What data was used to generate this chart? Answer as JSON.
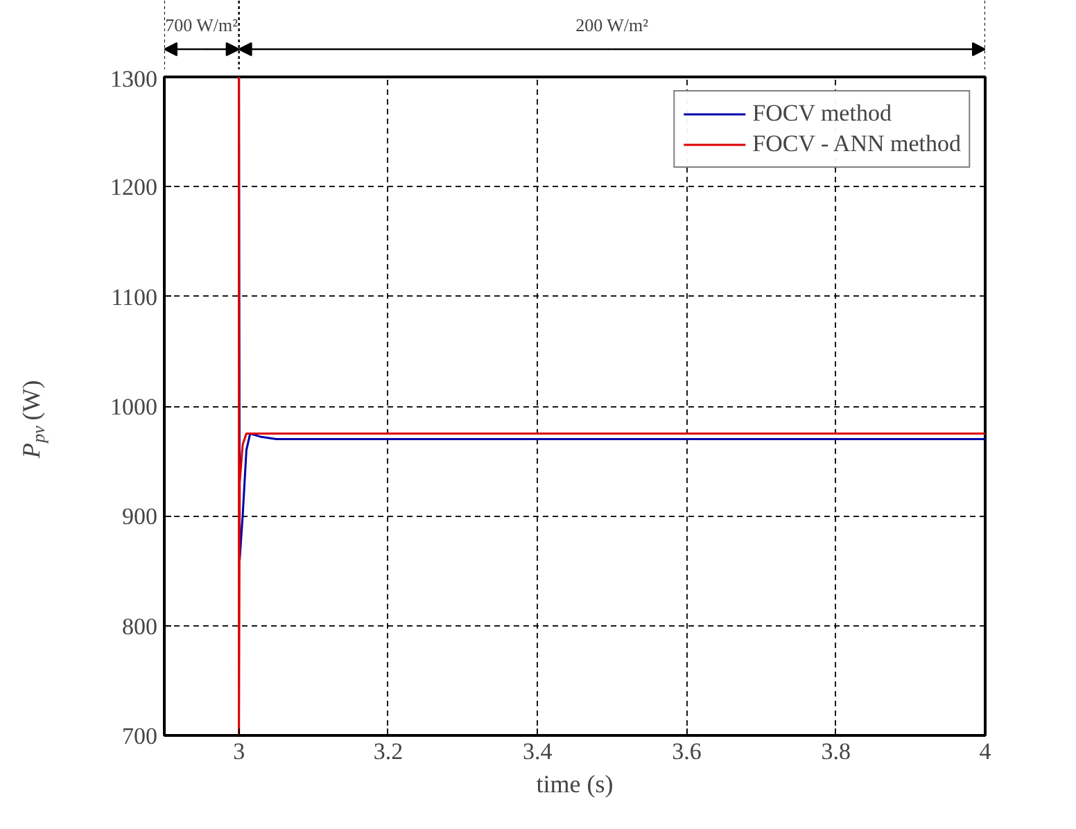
{
  "chart_data": {
    "type": "line",
    "xlabel": "time (s)",
    "ylabel": "P$_{pv}$ (W)",
    "xlim": [
      2.9,
      4
    ],
    "ylim": [
      700,
      1300
    ],
    "xticks": [
      3,
      3.2,
      3.4,
      3.6,
      3.8,
      4
    ],
    "yticks": [
      700,
      800,
      900,
      1000,
      1100,
      1200,
      1300
    ],
    "grid": true,
    "legend": "top right",
    "line_style": "solid",
    "series": [
      {
        "name": "FOCV method",
        "color": "#0000aa",
        "x": [
          3.0,
          3.001,
          3.005,
          3.01,
          3.015,
          3.03,
          3.05,
          4.0
        ],
        "values": [
          1300,
          860,
          900,
          960,
          975,
          972,
          970,
          970
        ]
      },
      {
        "name": "FOCV - ANN method",
        "color": "#dd0000",
        "x": [
          3.0,
          3.0,
          3.001,
          3.005,
          3.01,
          3.03,
          4.0
        ],
        "values": [
          1300,
          700,
          930,
          965,
          975,
          975,
          975
        ]
      }
    ],
    "ref_lines": [
      {
        "axis": "x",
        "value": 3
      }
    ],
    "annotations": [
      "700 W/m²",
      "200 W/m²"
    ]
  }
}
